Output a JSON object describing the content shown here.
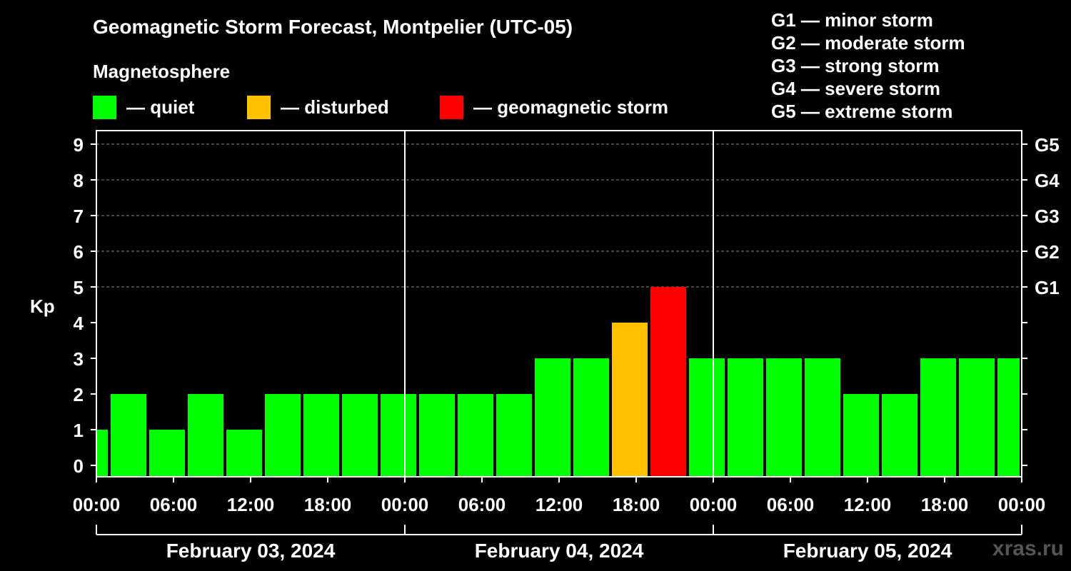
{
  "title": "Geomagnetic Storm Forecast, Montpelier (UTC-05)",
  "subtitle": "Magnetosphere",
  "legend": [
    {
      "label": "— quiet",
      "color": "#00ff00"
    },
    {
      "label": "— disturbed",
      "color": "#ffc000"
    },
    {
      "label": "— geomagnetic storm",
      "color": "#ff0000"
    }
  ],
  "g_levels": [
    "G1 — minor storm",
    "G2 — moderate storm",
    "G3 — strong storm",
    "G4 — severe storm",
    "G5 — extreme storm"
  ],
  "watermark": "xras.ru",
  "colors": {
    "quiet": "#00ff00",
    "disturbed": "#ffc000",
    "storm": "#ff0000"
  },
  "chart_data": {
    "type": "bar",
    "ylabel": "Kp",
    "ylim": [
      0,
      9
    ],
    "yticks": [
      0,
      1,
      2,
      3,
      4,
      5,
      6,
      7,
      8,
      9
    ],
    "right_axis_ticks": [
      {
        "kp": 5,
        "label": "G1"
      },
      {
        "kp": 6,
        "label": "G2"
      },
      {
        "kp": 7,
        "label": "G3"
      },
      {
        "kp": 8,
        "label": "G4"
      },
      {
        "kp": 9,
        "label": "G5"
      }
    ],
    "xticks": [
      "00:00",
      "06:00",
      "12:00",
      "18:00",
      "00:00",
      "06:00",
      "12:00",
      "18:00",
      "00:00",
      "06:00",
      "12:00",
      "18:00",
      "00:00"
    ],
    "days": [
      "February 03, 2024",
      "February 04, 2024",
      "February 05, 2024"
    ],
    "bars": [
      {
        "start_hour": 0,
        "end_hour": 1,
        "kp": 1,
        "level": "quiet"
      },
      {
        "start_hour": 1,
        "end_hour": 4,
        "kp": 2,
        "level": "quiet"
      },
      {
        "start_hour": 4,
        "end_hour": 7,
        "kp": 1,
        "level": "quiet"
      },
      {
        "start_hour": 7,
        "end_hour": 10,
        "kp": 2,
        "level": "quiet"
      },
      {
        "start_hour": 10,
        "end_hour": 13,
        "kp": 1,
        "level": "quiet"
      },
      {
        "start_hour": 13,
        "end_hour": 16,
        "kp": 2,
        "level": "quiet"
      },
      {
        "start_hour": 16,
        "end_hour": 19,
        "kp": 2,
        "level": "quiet"
      },
      {
        "start_hour": 19,
        "end_hour": 22,
        "kp": 2,
        "level": "quiet"
      },
      {
        "start_hour": 22,
        "end_hour": 25,
        "kp": 2,
        "level": "quiet"
      },
      {
        "start_hour": 25,
        "end_hour": 28,
        "kp": 2,
        "level": "quiet"
      },
      {
        "start_hour": 28,
        "end_hour": 31,
        "kp": 2,
        "level": "quiet"
      },
      {
        "start_hour": 31,
        "end_hour": 34,
        "kp": 2,
        "level": "quiet"
      },
      {
        "start_hour": 34,
        "end_hour": 37,
        "kp": 3,
        "level": "quiet"
      },
      {
        "start_hour": 37,
        "end_hour": 40,
        "kp": 3,
        "level": "quiet"
      },
      {
        "start_hour": 40,
        "end_hour": 43,
        "kp": 4,
        "level": "disturbed"
      },
      {
        "start_hour": 43,
        "end_hour": 46,
        "kp": 5,
        "level": "storm"
      },
      {
        "start_hour": 46,
        "end_hour": 49,
        "kp": 3,
        "level": "quiet"
      },
      {
        "start_hour": 49,
        "end_hour": 52,
        "kp": 3,
        "level": "quiet"
      },
      {
        "start_hour": 52,
        "end_hour": 55,
        "kp": 3,
        "level": "quiet"
      },
      {
        "start_hour": 55,
        "end_hour": 58,
        "kp": 3,
        "level": "quiet"
      },
      {
        "start_hour": 58,
        "end_hour": 61,
        "kp": 2,
        "level": "quiet"
      },
      {
        "start_hour": 61,
        "end_hour": 64,
        "kp": 2,
        "level": "quiet"
      },
      {
        "start_hour": 64,
        "end_hour": 67,
        "kp": 3,
        "level": "quiet"
      },
      {
        "start_hour": 67,
        "end_hour": 70,
        "kp": 3,
        "level": "quiet"
      },
      {
        "start_hour": 70,
        "end_hour": 72,
        "kp": 3,
        "level": "quiet"
      }
    ]
  }
}
